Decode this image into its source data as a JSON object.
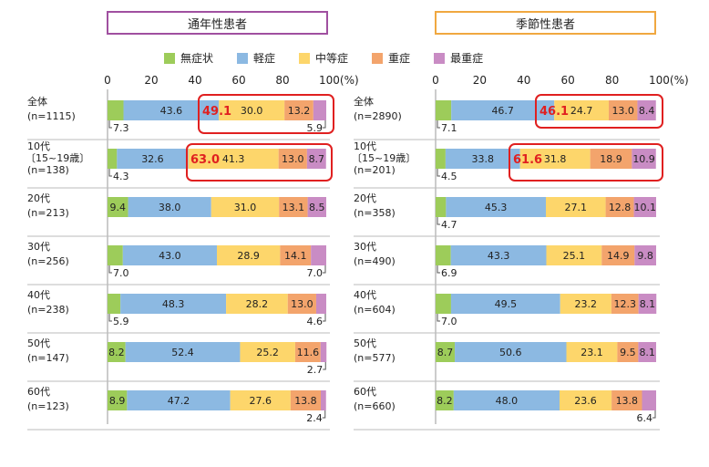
{
  "titles": {
    "left": "通年性患者",
    "right": "季節性患者"
  },
  "legend": [
    {
      "label": "無症状",
      "color": "#9dcc5a"
    },
    {
      "label": "軽症",
      "color": "#8cb9e2"
    },
    {
      "label": "中等症",
      "color": "#fdd66b"
    },
    {
      "label": "重症",
      "color": "#f3a46c"
    },
    {
      "label": "最重症",
      "color": "#c98cc4"
    }
  ],
  "ticks": [
    "0",
    "20",
    "40",
    "60",
    "80",
    "100"
  ],
  "unit": "(%)",
  "chart_data": [
    {
      "type": "bar",
      "orientation": "horizontal-stacked",
      "title": "通年性患者",
      "xlim": [
        0,
        100
      ],
      "categories": [
        {
          "label": "全体",
          "n": "(n=1115)"
        },
        {
          "label": "10代",
          "sub": "〔15~19歳〕",
          "n": "(n=138)"
        },
        {
          "label": "20代",
          "n": "(n=213)"
        },
        {
          "label": "30代",
          "n": "(n=256)"
        },
        {
          "label": "40代",
          "n": "(n=238)"
        },
        {
          "label": "50代",
          "n": "(n=147)"
        },
        {
          "label": "60代",
          "n": "(n=123)"
        }
      ],
      "series": [
        {
          "name": "無症状",
          "values": [
            7.3,
            4.3,
            9.4,
            7.0,
            5.9,
            8.2,
            8.9
          ]
        },
        {
          "name": "軽症",
          "values": [
            43.6,
            32.6,
            38.0,
            43.0,
            48.3,
            52.4,
            47.2
          ]
        },
        {
          "name": "中等症",
          "values": [
            30.0,
            41.3,
            31.0,
            28.9,
            28.2,
            25.2,
            27.6
          ]
        },
        {
          "name": "重症",
          "values": [
            13.2,
            13.0,
            13.1,
            14.1,
            13.0,
            11.6,
            13.8
          ]
        },
        {
          "name": "最重症",
          "values": [
            5.9,
            8.7,
            8.5,
            7.0,
            4.6,
            2.7,
            2.4
          ]
        }
      ],
      "highlights": [
        {
          "row": 0,
          "value": "49.1"
        },
        {
          "row": 1,
          "value": "63.0"
        }
      ]
    },
    {
      "type": "bar",
      "orientation": "horizontal-stacked",
      "title": "季節性患者",
      "xlim": [
        0,
        100
      ],
      "categories": [
        {
          "label": "全体",
          "n": "(n=2890)"
        },
        {
          "label": "10代",
          "sub": "〔15~19歳〕",
          "n": "(n=201)"
        },
        {
          "label": "20代",
          "n": "(n=358)"
        },
        {
          "label": "30代",
          "n": "(n=490)"
        },
        {
          "label": "40代",
          "n": "(n=604)"
        },
        {
          "label": "50代",
          "n": "(n=577)"
        },
        {
          "label": "60代",
          "n": "(n=660)"
        }
      ],
      "series": [
        {
          "name": "無症状",
          "values": [
            7.1,
            4.5,
            4.7,
            6.9,
            7.0,
            8.7,
            8.2
          ]
        },
        {
          "name": "軽症",
          "values": [
            46.7,
            33.8,
            45.3,
            43.3,
            49.5,
            50.6,
            48.0
          ]
        },
        {
          "name": "中等症",
          "values": [
            24.7,
            31.8,
            27.1,
            25.1,
            23.2,
            23.1,
            23.6
          ]
        },
        {
          "name": "重症",
          "values": [
            13.0,
            18.9,
            12.8,
            14.9,
            12.3,
            9.5,
            13.8
          ]
        },
        {
          "name": "最重症",
          "values": [
            8.4,
            10.9,
            10.1,
            9.8,
            8.1,
            8.1,
            6.4
          ]
        }
      ],
      "highlights": [
        {
          "row": 0,
          "value": "46.1"
        },
        {
          "row": 1,
          "value": "61.6"
        }
      ]
    }
  ]
}
